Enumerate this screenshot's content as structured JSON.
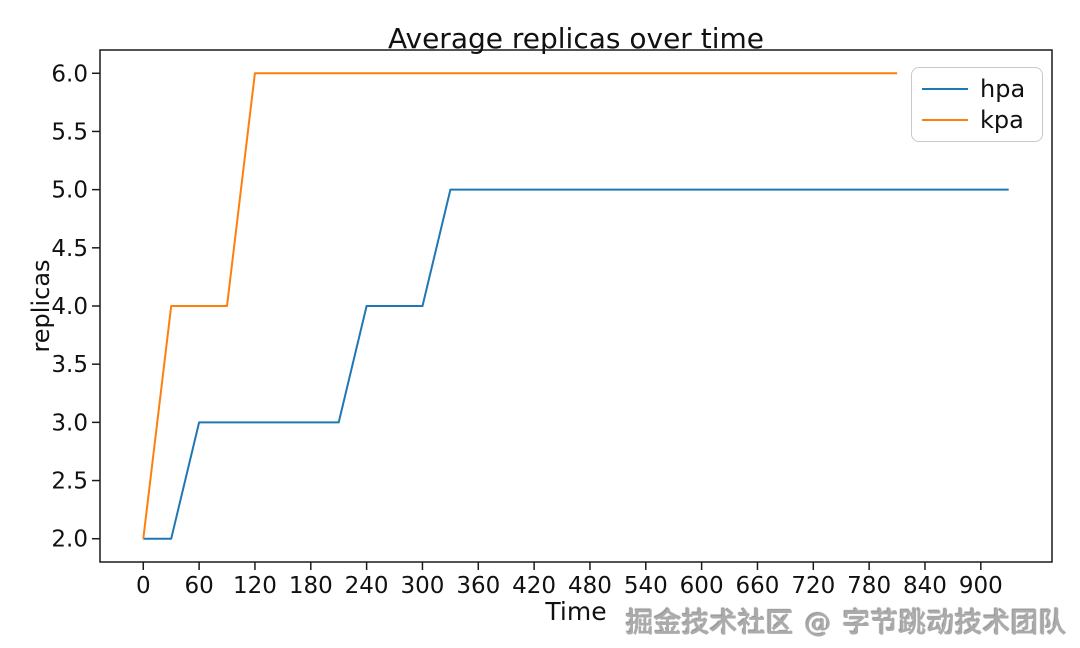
{
  "watermark": {
    "text": "掘金技术社区 @ 字节跳动技术团队"
  },
  "chart_data": {
    "type": "line",
    "title": "Average replicas over time",
    "xlabel": "Time",
    "ylabel": "replicas",
    "xlim": [
      -46.5,
      976.5
    ],
    "ylim": [
      1.8,
      6.2
    ],
    "x_ticks": [
      0,
      60,
      120,
      180,
      240,
      300,
      360,
      420,
      480,
      540,
      600,
      660,
      720,
      780,
      840,
      900
    ],
    "y_ticks": [
      2.0,
      2.5,
      3.0,
      3.5,
      4.0,
      4.5,
      5.0,
      5.5,
      6.0
    ],
    "grid": false,
    "legend_position": "upper right",
    "line_width": 2,
    "axis_color": "#1a1a1a",
    "series": [
      {
        "name": "hpa",
        "color": "#1f77b4",
        "x": [
          0,
          30,
          60,
          90,
          120,
          150,
          180,
          210,
          240,
          270,
          300,
          330,
          360,
          390,
          420,
          450,
          480,
          510,
          540,
          570,
          600,
          630,
          660,
          690,
          720,
          750,
          780,
          810,
          840,
          870,
          900,
          930
        ],
        "values": [
          2,
          2,
          3,
          3,
          3,
          3,
          3,
          3,
          4,
          4,
          4,
          5,
          5,
          5,
          5,
          5,
          5,
          5,
          5,
          5,
          5,
          5,
          5,
          5,
          5,
          5,
          5,
          5,
          5,
          5,
          5,
          5
        ]
      },
      {
        "name": "kpa",
        "color": "#ff7f0e",
        "x": [
          0,
          30,
          60,
          90,
          120,
          150,
          180,
          210,
          240,
          270,
          300,
          330,
          360,
          390,
          420,
          450,
          480,
          510,
          540,
          570,
          600,
          630,
          660,
          690,
          720,
          750,
          780,
          810
        ],
        "values": [
          2,
          4,
          4,
          4,
          6,
          6,
          6,
          6,
          6,
          6,
          6,
          6,
          6,
          6,
          6,
          6,
          6,
          6,
          6,
          6,
          6,
          6,
          6,
          6,
          6,
          6,
          6,
          6
        ]
      }
    ]
  }
}
